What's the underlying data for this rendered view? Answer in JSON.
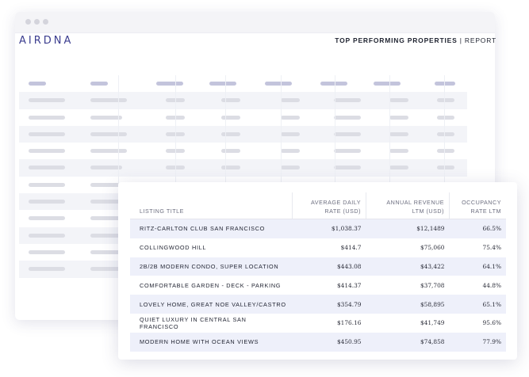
{
  "brand": {
    "logo": "AIRDNA"
  },
  "report": {
    "title_bold": "TOP PERFORMING PROPERTIES",
    "separator": "|",
    "title_light": "REPORT"
  },
  "table": {
    "headers": [
      [
        "LISTING TITLE"
      ],
      [
        "AVERAGE DAILY",
        "RATE (USD)"
      ],
      [
        "ANNUAL REVENUE",
        "LTM (USD)"
      ],
      [
        "OCCUPANCY",
        "RATE LTM"
      ]
    ],
    "rows": [
      [
        "RITZ-CARLTON CLUB SAN FRANCISCO",
        "$1,038.37",
        "$12,1489",
        "66.5%"
      ],
      [
        "COLLINGWOOD HILL",
        "$414.7",
        "$75,060",
        "75.4%"
      ],
      [
        "2B/2B MODERN CONDO, SUPER LOCATION",
        "$443.08",
        "$43,422",
        "64.1%"
      ],
      [
        "COMFORTABLE GARDEN - DECK - PARKING",
        "$414.37",
        "$37,708",
        "44.8%"
      ],
      [
        "LOVELY HOME, GREAT NOE VALLEY/CASTRO",
        "$354.79",
        "$58,895",
        "65.1%"
      ],
      [
        "QUIET LUXURY IN CENTRAL SAN FRANCISCO",
        "$176.16",
        "$41,749",
        "95.6%"
      ],
      [
        "MODERN HOME WITH OCEAN VIEWS",
        "$450.95",
        "$74,858",
        "77.9%"
      ]
    ]
  },
  "colors": {
    "brand": "#3b3d8f",
    "row_highlight": "#eef0fa",
    "placeholder_bar": "#dcdde4",
    "placeholder_header": "#c3c4dc"
  }
}
